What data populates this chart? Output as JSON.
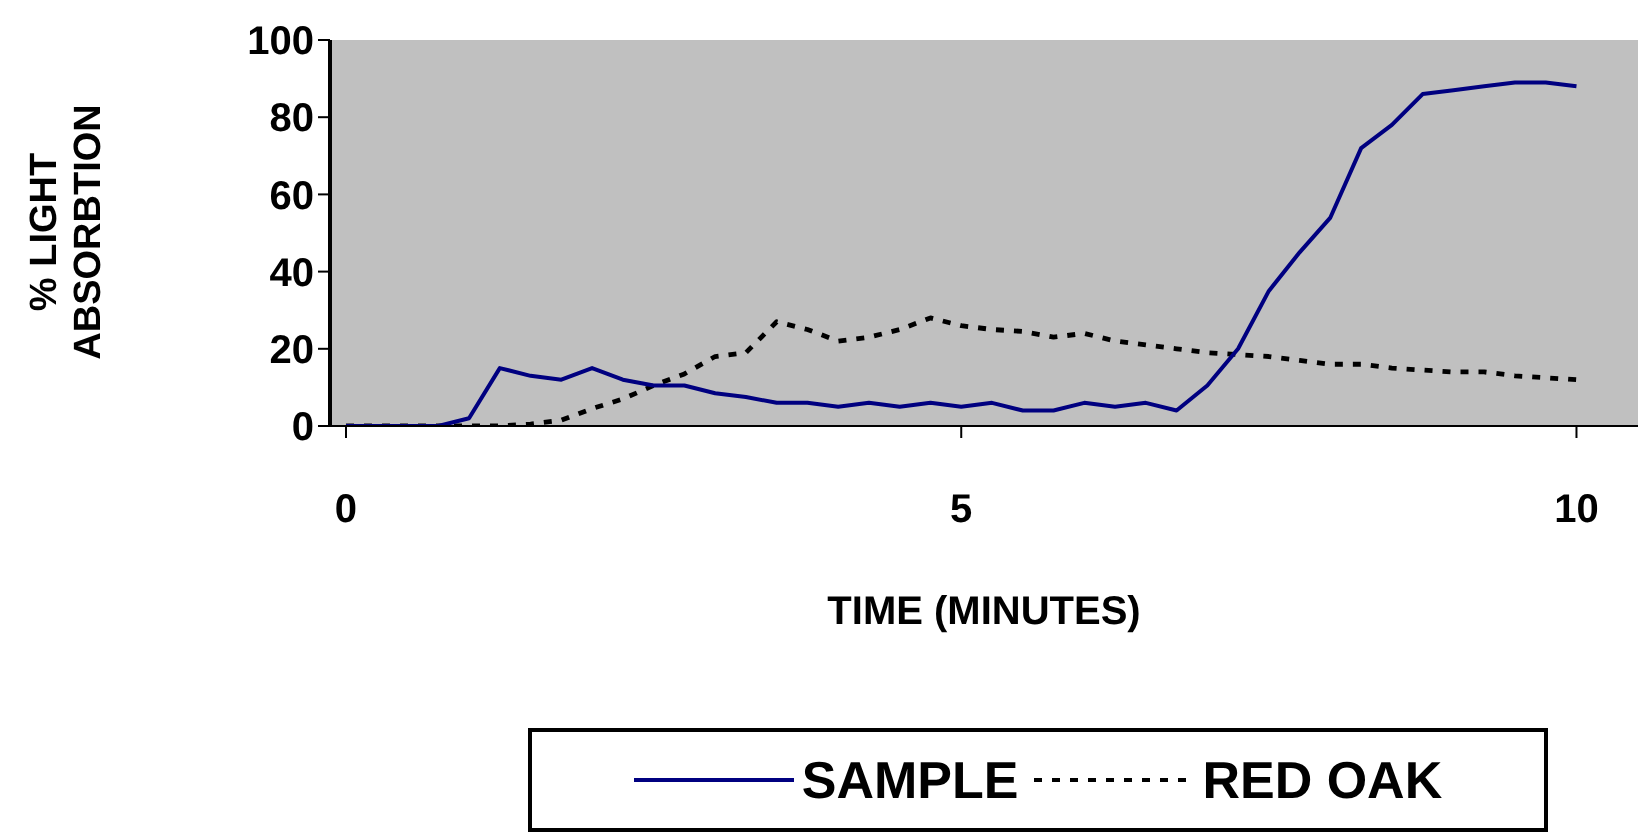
{
  "chart_data": {
    "type": "line",
    "xlabel": "TIME (MINUTES)",
    "ylabel": "% LIGHT ABSORBTION",
    "x": [
      0,
      0.25,
      0.5,
      0.75,
      1,
      1.25,
      1.5,
      1.75,
      2,
      2.25,
      2.5,
      2.75,
      3,
      3.25,
      3.5,
      3.75,
      4,
      4.25,
      4.5,
      4.75,
      5,
      5.25,
      5.5,
      5.75,
      6,
      6.25,
      6.5,
      6.75,
      7,
      7.25,
      7.5,
      7.75,
      8,
      8.25,
      8.5,
      8.75,
      9,
      9.25,
      9.5,
      9.75,
      10
    ],
    "xlim": [
      -0.13,
      10.5
    ],
    "xticks": [
      0,
      5,
      10
    ],
    "ylim": [
      0,
      100
    ],
    "yticks": [
      0,
      20,
      40,
      60,
      80,
      100
    ],
    "grid": false,
    "legend": "bottom",
    "marker": "none",
    "series": [
      {
        "name": "SAMPLE",
        "color": "#000080",
        "line_style": "solid",
        "values": [
          0,
          0,
          0,
          0,
          2,
          15,
          13,
          12,
          15,
          12,
          10.5,
          10.5,
          8.5,
          7.5,
          6,
          6,
          5,
          6,
          5,
          6,
          5,
          6,
          4,
          4,
          6,
          5,
          6,
          4,
          10.5,
          20,
          35,
          45,
          54,
          72,
          78,
          86,
          87,
          88,
          89,
          89,
          88
        ]
      },
      {
        "name": "RED OAK",
        "color": "#000000",
        "line_style": "dashed",
        "values": [
          0,
          0,
          0,
          0,
          0,
          0,
          0.5,
          1.5,
          4.5,
          7,
          10.5,
          13.5,
          18,
          19,
          27,
          25,
          22,
          23,
          25,
          28,
          26,
          25,
          24.5,
          23,
          24,
          22,
          21,
          20,
          19,
          18.5,
          18,
          17,
          16,
          16,
          15,
          14.5,
          14,
          14,
          13,
          12.5,
          12
        ]
      }
    ]
  }
}
